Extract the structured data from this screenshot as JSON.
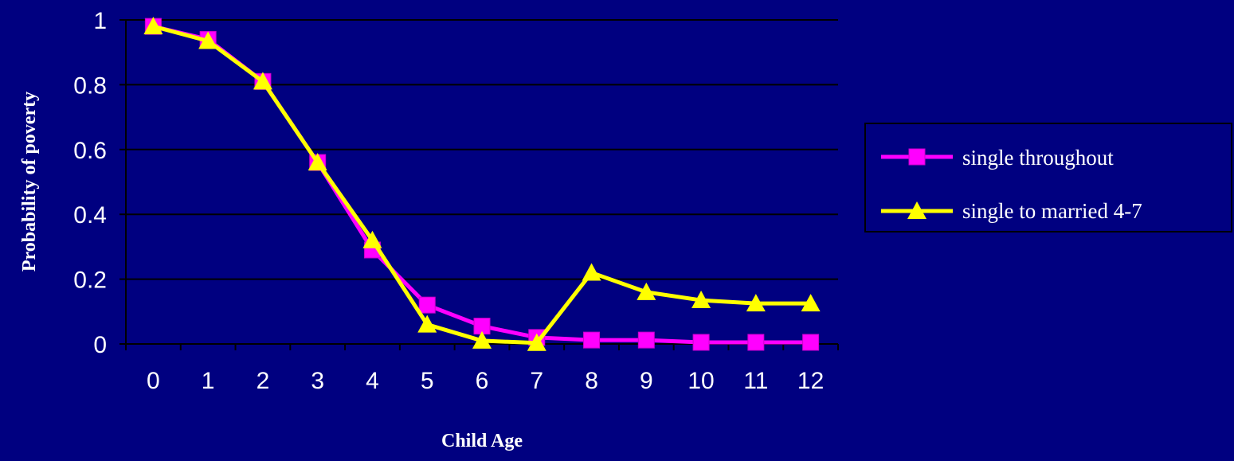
{
  "colors": {
    "background": "#000080",
    "axis": "#000000",
    "text": "#ffffff",
    "legend_border": "#000000"
  },
  "chart_data": {
    "type": "line",
    "title": "",
    "xlabel": "Child Age",
    "ylabel": "Probability of poverty",
    "x": [
      "0",
      "1",
      "2",
      "3",
      "4",
      "5",
      "6",
      "7",
      "8",
      "9",
      "10",
      "11",
      "12"
    ],
    "ylim": [
      0,
      1
    ],
    "yticks": [
      "0",
      "0.2",
      "0.4",
      "0.6",
      "0.8",
      "1"
    ],
    "grid": "horizontal",
    "legend_position": "right",
    "series": [
      {
        "name": "single throughout",
        "color": "#ff00ff",
        "marker": "square",
        "values": [
          0.98,
          0.94,
          0.81,
          0.56,
          0.29,
          0.12,
          0.055,
          0.02,
          0.012,
          0.012,
          0.005,
          0.005,
          0.005
        ]
      },
      {
        "name": "single to married 4-7",
        "color": "#ffff00",
        "marker": "triangle",
        "values": [
          0.98,
          0.935,
          0.81,
          0.56,
          0.32,
          0.06,
          0.01,
          0.003,
          0.22,
          0.16,
          0.135,
          0.125,
          0.125
        ]
      }
    ]
  }
}
